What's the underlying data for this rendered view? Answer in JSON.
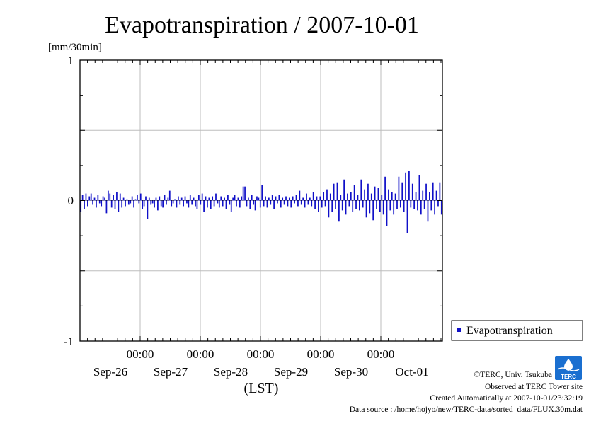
{
  "chart_data": {
    "type": "bar",
    "title": "Evapotranspiration / 2007-10-01",
    "ylabel": "[mm/30min]",
    "xlabel": "(LST)",
    "ylim": [
      -1,
      1
    ],
    "yticks": [
      "1",
      "0",
      "-1"
    ],
    "ygrid_values": [
      -0.5,
      0.5
    ],
    "x_time_labels": [
      "00:00",
      "00:00",
      "00:00",
      "00:00",
      "00:00"
    ],
    "x_date_labels": [
      "Sep-26",
      "Sep-27",
      "Sep-28",
      "Sep-29",
      "Sep-30",
      "Oct-01"
    ],
    "grid": true,
    "series": [
      {
        "name": "Evapotranspiration",
        "color": "#1010c8",
        "interval_minutes": 30,
        "values": [
          -0.08,
          0.04,
          -0.06,
          0.05,
          -0.04,
          0.03,
          0.05,
          -0.03,
          0.02,
          -0.05,
          0.04,
          -0.02,
          -0.04,
          0.03,
          0.02,
          -0.09,
          0.07,
          0.05,
          -0.05,
          0.04,
          -0.06,
          0.06,
          -0.08,
          0.05,
          -0.05,
          0.02,
          -0.04,
          0.01,
          -0.03,
          -0.02,
          0.03,
          -0.05,
          0.01,
          0.04,
          -0.02,
          0.05,
          -0.06,
          -0.04,
          0.03,
          -0.13,
          0.02,
          -0.03,
          -0.02,
          -0.05,
          0.02,
          -0.07,
          0.03,
          -0.04,
          -0.05,
          0.04,
          -0.03,
          0.02,
          0.07,
          -0.04,
          -0.02,
          0.01,
          -0.05,
          0.03,
          -0.03,
          0.02,
          -0.04,
          0.03,
          -0.02,
          -0.05,
          0.04,
          -0.03,
          0.02,
          -0.04,
          -0.06,
          0.04,
          -0.03,
          0.05,
          -0.08,
          0.03,
          -0.05,
          0.02,
          -0.06,
          0.03,
          -0.04,
          0.05,
          -0.02,
          -0.05,
          0.03,
          -0.04,
          0.02,
          -0.06,
          0.04,
          -0.03,
          -0.08,
          0.02,
          0.04,
          -0.04,
          0.02,
          -0.05,
          0.03,
          0.1,
          0.1,
          -0.04,
          0.02,
          -0.06,
          0.04,
          -0.03,
          -0.07,
          0.03,
          0.02,
          -0.05,
          0.11,
          -0.04,
          0.03,
          -0.05,
          0.02,
          -0.03,
          0.04,
          -0.06,
          0.03,
          -0.02,
          0.04,
          -0.05,
          0.02,
          -0.03,
          0.03,
          -0.04,
          0.02,
          -0.05,
          0.03,
          -0.02,
          0.04,
          -0.04,
          0.07,
          -0.03,
          0.02,
          -0.05,
          0.05,
          -0.03,
          0.02,
          -0.04,
          0.06,
          -0.06,
          0.03,
          -0.08,
          0.03,
          -0.05,
          0.06,
          -0.04,
          0.08,
          -0.12,
          0.05,
          -0.08,
          0.12,
          -0.06,
          0.13,
          -0.15,
          0.04,
          -0.07,
          0.15,
          -0.1,
          0.05,
          -0.04,
          0.06,
          -0.08,
          0.11,
          -0.06,
          0.04,
          -0.07,
          0.15,
          -0.05,
          0.08,
          -0.12,
          0.12,
          -0.09,
          0.05,
          -0.14,
          0.1,
          -0.06,
          0.09,
          -0.08,
          0.04,
          -0.1,
          0.17,
          -0.18,
          0.08,
          -0.07,
          0.06,
          -0.1,
          0.05,
          -0.06,
          0.17,
          -0.05,
          0.13,
          -0.08,
          0.2,
          -0.23,
          0.21,
          -0.05,
          0.12,
          -0.06,
          0.06,
          -0.07,
          0.18,
          -0.1,
          0.07,
          -0.06,
          0.12,
          -0.15,
          0.06,
          -0.07,
          0.13,
          -0.1,
          0.07,
          -0.04,
          0.13,
          -0.1
        ]
      }
    ]
  },
  "legend": {
    "label": "Evapotranspiration",
    "position": "right-bottom"
  },
  "credits": {
    "copyright": "©TERC, Univ. Tsukuba",
    "observed": "Observed at TERC Tower site",
    "created": "Created Automatically at 2007-10-01/23:32:19",
    "source": "Data source : /home/hojyo/new/TERC-data/sorted_data/FLUX.30m.dat",
    "logo_text": "TERC",
    "logo_color": "#1a6fd0"
  }
}
